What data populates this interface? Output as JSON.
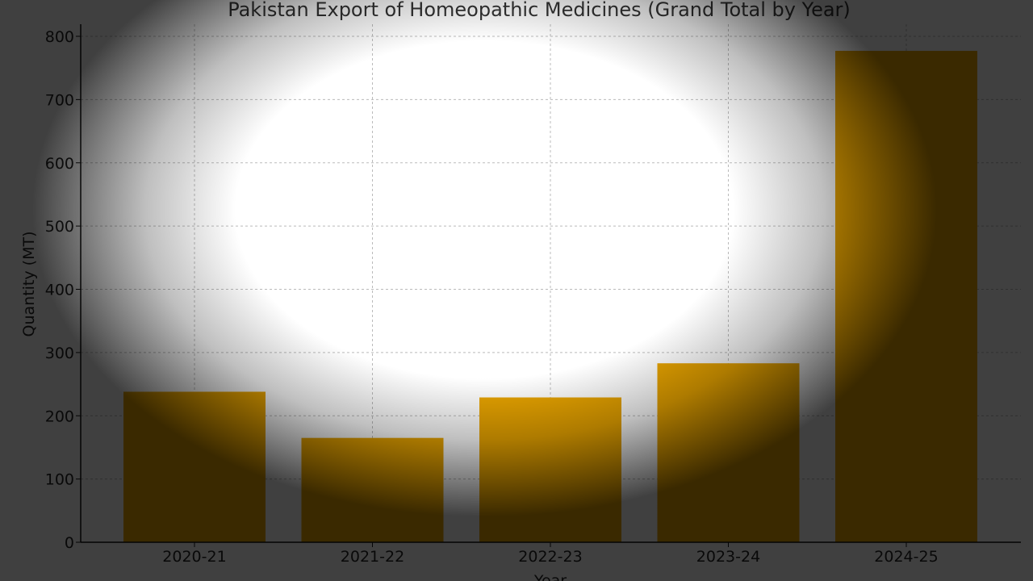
{
  "chart_data": {
    "type": "bar",
    "title": "Pakistan Export of Homeopathic Medicines (Grand Total by Year)",
    "xlabel": "Year",
    "ylabel": "Quantity (MT)",
    "categories": [
      "2020-21",
      "2021-22",
      "2022-23",
      "2023-24",
      "2024-25"
    ],
    "values": [
      238,
      165,
      229,
      283,
      777
    ],
    "ylim": [
      0,
      800
    ],
    "yticks": [
      0,
      100,
      200,
      300,
      400,
      500,
      600,
      700,
      800
    ],
    "grid": true,
    "bar_color": "#E8A400"
  }
}
